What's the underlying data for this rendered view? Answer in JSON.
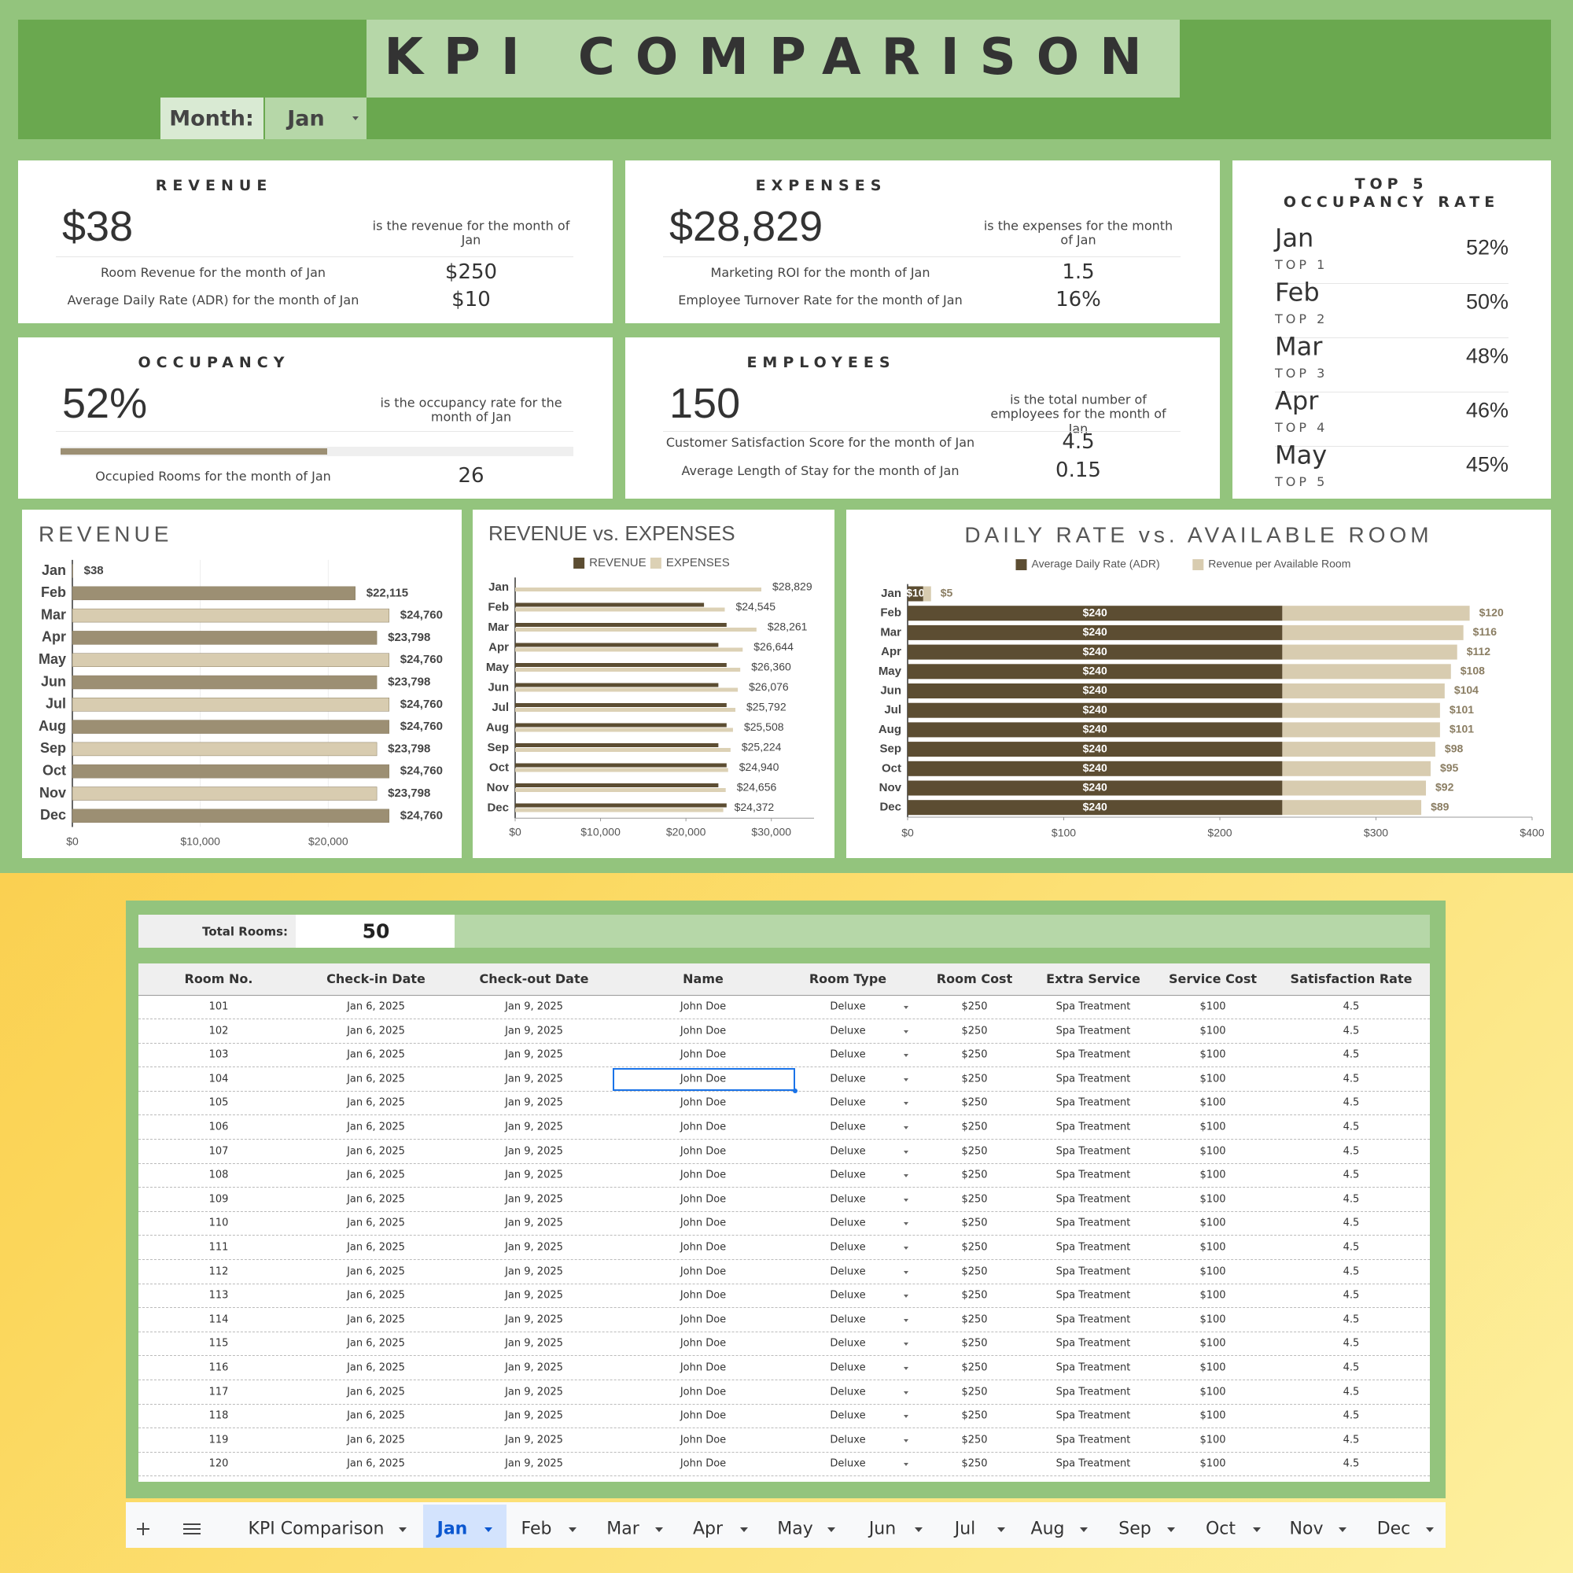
{
  "header": {
    "title": "KPI COMPARISON",
    "month_label": "Month:",
    "month": "Jan"
  },
  "cards": {
    "revenue": {
      "title": "REVENUE",
      "value": "$38",
      "caption": "is the revenue for the month of Jan",
      "rows": [
        {
          "label": "Room Revenue for the month of Jan",
          "value": "$250"
        },
        {
          "label": "Average Daily Rate (ADR) for the month of Jan",
          "value": "$10"
        }
      ]
    },
    "expenses": {
      "title": "EXPENSES",
      "value": "$28,829",
      "caption": "is the expenses for the month of Jan",
      "rows": [
        {
          "label": "Marketing ROI for the month of Jan",
          "value": "1.5"
        },
        {
          "label": "Employee Turnover Rate for the month of Jan",
          "value": "16%"
        }
      ]
    },
    "occupancy": {
      "title": "OCCUPANCY",
      "value": 52,
      "value_label": "52%",
      "caption": "is the occupancy rate for the month of Jan",
      "rows": [
        {
          "label": "Occupied Rooms for the month of Jan",
          "value": "26"
        }
      ]
    },
    "employees": {
      "title": "EMPLOYEES",
      "value": "150",
      "caption": "is the total number of employees for the month of Jan",
      "rows": [
        {
          "label": "Customer Satisfaction Score for the month of Jan",
          "value": "4.5"
        },
        {
          "label": "Average Length of Stay for the month of Jan",
          "value": "0.15"
        }
      ]
    }
  },
  "top5": {
    "title": [
      "TOP 5",
      "OCCUPANCY RATE"
    ],
    "items": [
      {
        "month": "Jan",
        "rank": "TOP 1",
        "rate": "52%"
      },
      {
        "month": "Feb",
        "rank": "TOP 2",
        "rate": "50%"
      },
      {
        "month": "Mar",
        "rank": "TOP 3",
        "rate": "48%"
      },
      {
        "month": "Apr",
        "rank": "TOP 4",
        "rate": "46%"
      },
      {
        "month": "May",
        "rank": "TOP 5",
        "rate": "45%"
      }
    ]
  },
  "chart_data": [
    {
      "type": "bar",
      "title": "REVENUE",
      "categories": [
        "Jan",
        "Feb",
        "Mar",
        "Apr",
        "May",
        "Jun",
        "Jul",
        "Aug",
        "Sep",
        "Oct",
        "Nov",
        "Dec"
      ],
      "values": [
        38,
        22115,
        24760,
        23798,
        24760,
        23798,
        24760,
        24760,
        23798,
        24760,
        23798,
        24760
      ],
      "value_labels": [
        "$38",
        "$22,115",
        "$24,760",
        "$23,798",
        "$24,760",
        "$23,798",
        "$24,760",
        "$24,760",
        "$23,798",
        "$24,760",
        "$23,798",
        "$24,760"
      ],
      "colors": [
        "#d8ccb0",
        "#9c8f73",
        "#d8ccb0",
        "#9c8f73",
        "#d8ccb0",
        "#9c8f73",
        "#d8ccb0",
        "#9c8f73",
        "#d8ccb0",
        "#9c8f73",
        "#d8ccb0",
        "#9c8f73"
      ],
      "xlim": [
        0,
        30000
      ],
      "xticks": [
        {
          "value": 0,
          "label": "$0"
        },
        {
          "value": 10000,
          "label": "$10,000"
        },
        {
          "value": 20000,
          "label": "$20,000"
        }
      ],
      "grid": true
    },
    {
      "type": "bar",
      "title": "REVENUE vs. EXPENSES",
      "categories": [
        "Jan",
        "Feb",
        "Mar",
        "Apr",
        "May",
        "Jun",
        "Jul",
        "Aug",
        "Sep",
        "Oct",
        "Nov",
        "Dec"
      ],
      "series": [
        {
          "name": "REVENUE",
          "color": "#5c4d32",
          "values": [
            38,
            22115,
            24760,
            23798,
            24760,
            23798,
            24760,
            24760,
            23798,
            24760,
            23798,
            24760
          ]
        },
        {
          "name": "EXPENSES",
          "color": "#dcd1b5",
          "values": [
            28829,
            24545,
            28261,
            26644,
            26360,
            26076,
            25792,
            25508,
            25224,
            24940,
            24656,
            24372
          ],
          "value_labels": [
            "$28,829",
            "$24,545",
            "$28,261",
            "$26,644",
            "$26,360",
            "$26,076",
            "$25,792",
            "$25,508",
            "$25,224",
            "$24,940",
            "$24,656",
            "$24,372"
          ]
        }
      ],
      "xlim": [
        0,
        35000
      ],
      "xticks": [
        {
          "value": 0,
          "label": "$0"
        },
        {
          "value": 10000,
          "label": "$10,000"
        },
        {
          "value": 20000,
          "label": "$20,000"
        },
        {
          "value": 30000,
          "label": "$30,000"
        }
      ],
      "legend": "top",
      "grid": false
    },
    {
      "type": "bar",
      "stacked": true,
      "title": "DAILY RATE vs. AVAILABLE ROOM",
      "categories": [
        "Jan",
        "Feb",
        "Mar",
        "Apr",
        "May",
        "Jun",
        "Jul",
        "Aug",
        "Sep",
        "Oct",
        "Nov",
        "Dec"
      ],
      "series": [
        {
          "name": "Average Daily Rate (ADR)",
          "color": "#5c4d32",
          "values": [
            10,
            240,
            240,
            240,
            240,
            240,
            240,
            240,
            240,
            240,
            240,
            240
          ],
          "value_labels": [
            "$10",
            "$240",
            "$240",
            "$240",
            "$240",
            "$240",
            "$240",
            "$240",
            "$240",
            "$240",
            "$240",
            "$240"
          ]
        },
        {
          "name": "Revenue per Available Room",
          "color": "#d8ccb0",
          "values": [
            5,
            120,
            116,
            112,
            108,
            104,
            101,
            101,
            98,
            95,
            92,
            89
          ],
          "value_labels": [
            "$5",
            "$120",
            "$116",
            "$112",
            "$108",
            "$104",
            "$101",
            "$101",
            "$98",
            "$95",
            "$92",
            "$89"
          ]
        }
      ],
      "xlim": [
        0,
        400
      ],
      "xticks": [
        {
          "value": 0,
          "label": "$0"
        },
        {
          "value": 100,
          "label": "$100"
        },
        {
          "value": 200,
          "label": "$200"
        },
        {
          "value": 300,
          "label": "$300"
        },
        {
          "value": 400,
          "label": "$400"
        }
      ],
      "legend": "top",
      "grid": false
    }
  ],
  "table": {
    "total_label": "Total Rooms:",
    "total": 50,
    "columns": [
      "Room No.",
      "Check-in Date",
      "Check-out Date",
      "Name",
      "Room Type",
      "Room Cost",
      "Extra Service",
      "Service Cost",
      "Satisfaction Rate"
    ],
    "rows": [
      [
        101,
        "Jan 6, 2025",
        "Jan 9, 2025",
        "John Doe",
        "Deluxe",
        "$250",
        "Spa Treatment",
        "$100",
        4.5
      ],
      [
        102,
        "Jan 6, 2025",
        "Jan 9, 2025",
        "John Doe",
        "Deluxe",
        "$250",
        "Spa Treatment",
        "$100",
        4.5
      ],
      [
        103,
        "Jan 6, 2025",
        "Jan 9, 2025",
        "John Doe",
        "Deluxe",
        "$250",
        "Spa Treatment",
        "$100",
        4.5
      ],
      [
        104,
        "Jan 6, 2025",
        "Jan 9, 2025",
        "John Doe",
        "Deluxe",
        "$250",
        "Spa Treatment",
        "$100",
        4.5
      ],
      [
        105,
        "Jan 6, 2025",
        "Jan 9, 2025",
        "John Doe",
        "Deluxe",
        "$250",
        "Spa Treatment",
        "$100",
        4.5
      ],
      [
        106,
        "Jan 6, 2025",
        "Jan 9, 2025",
        "John Doe",
        "Deluxe",
        "$250",
        "Spa Treatment",
        "$100",
        4.5
      ],
      [
        107,
        "Jan 6, 2025",
        "Jan 9, 2025",
        "John Doe",
        "Deluxe",
        "$250",
        "Spa Treatment",
        "$100",
        4.5
      ],
      [
        108,
        "Jan 6, 2025",
        "Jan 9, 2025",
        "John Doe",
        "Deluxe",
        "$250",
        "Spa Treatment",
        "$100",
        4.5
      ],
      [
        109,
        "Jan 6, 2025",
        "Jan 9, 2025",
        "John Doe",
        "Deluxe",
        "$250",
        "Spa Treatment",
        "$100",
        4.5
      ],
      [
        110,
        "Jan 6, 2025",
        "Jan 9, 2025",
        "John Doe",
        "Deluxe",
        "$250",
        "Spa Treatment",
        "$100",
        4.5
      ],
      [
        111,
        "Jan 6, 2025",
        "Jan 9, 2025",
        "John Doe",
        "Deluxe",
        "$250",
        "Spa Treatment",
        "$100",
        4.5
      ],
      [
        112,
        "Jan 6, 2025",
        "Jan 9, 2025",
        "John Doe",
        "Deluxe",
        "$250",
        "Spa Treatment",
        "$100",
        4.5
      ],
      [
        113,
        "Jan 6, 2025",
        "Jan 9, 2025",
        "John Doe",
        "Deluxe",
        "$250",
        "Spa Treatment",
        "$100",
        4.5
      ],
      [
        114,
        "Jan 6, 2025",
        "Jan 9, 2025",
        "John Doe",
        "Deluxe",
        "$250",
        "Spa Treatment",
        "$100",
        4.5
      ],
      [
        115,
        "Jan 6, 2025",
        "Jan 9, 2025",
        "John Doe",
        "Deluxe",
        "$250",
        "Spa Treatment",
        "$100",
        4.5
      ],
      [
        116,
        "Jan 6, 2025",
        "Jan 9, 2025",
        "John Doe",
        "Deluxe",
        "$250",
        "Spa Treatment",
        "$100",
        4.5
      ],
      [
        117,
        "Jan 6, 2025",
        "Jan 9, 2025",
        "John Doe",
        "Deluxe",
        "$250",
        "Spa Treatment",
        "$100",
        4.5
      ],
      [
        118,
        "Jan 6, 2025",
        "Jan 9, 2025",
        "John Doe",
        "Deluxe",
        "$250",
        "Spa Treatment",
        "$100",
        4.5
      ],
      [
        119,
        "Jan 6, 2025",
        "Jan 9, 2025",
        "John Doe",
        "Deluxe",
        "$250",
        "Spa Treatment",
        "$100",
        4.5
      ],
      [
        120,
        "Jan 6, 2025",
        "Jan 9, 2025",
        "John Doe",
        "Deluxe",
        "$250",
        "Spa Treatment",
        "$100",
        4.5
      ]
    ]
  },
  "tabs": [
    "KPI Comparison",
    "Jan",
    "Feb",
    "Mar",
    "Apr",
    "May",
    "Jun",
    "Jul",
    "Aug",
    "Sep",
    "Oct",
    "Nov",
    "Dec"
  ]
}
